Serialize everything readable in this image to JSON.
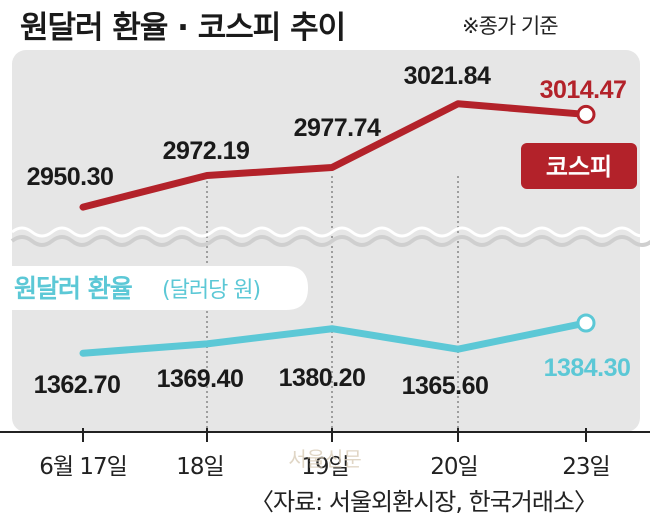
{
  "title": "원달러 환율 · 코스피 추이",
  "note": "※종가 기준",
  "source": "〈자료: 서울외환시장, 한국거래소〉",
  "watermark": "서울신문",
  "colors": {
    "kospi": "#b3222a",
    "fx": "#5cc8d6",
    "background": "#e6e6e6",
    "wave": "#cfcfcf"
  },
  "chart_data": [
    {
      "type": "line",
      "categories": [
        "6월 17일",
        "18일",
        "19일",
        "20일",
        "23일"
      ],
      "series": [
        {
          "name": "코스피",
          "values": [
            2950.3,
            2972.19,
            2977.74,
            3021.84,
            3014.47
          ]
        }
      ],
      "ylim": [
        2940,
        3030
      ]
    },
    {
      "type": "line",
      "categories": [
        "6월 17일",
        "18일",
        "19일",
        "20일",
        "23일"
      ],
      "series": [
        {
          "name": "원달러 환율",
          "unit": "(달러당 원)",
          "values": [
            1362.7,
            1369.4,
            1380.2,
            1365.6,
            1384.3
          ]
        }
      ],
      "ylim": [
        1355,
        1395
      ]
    }
  ]
}
